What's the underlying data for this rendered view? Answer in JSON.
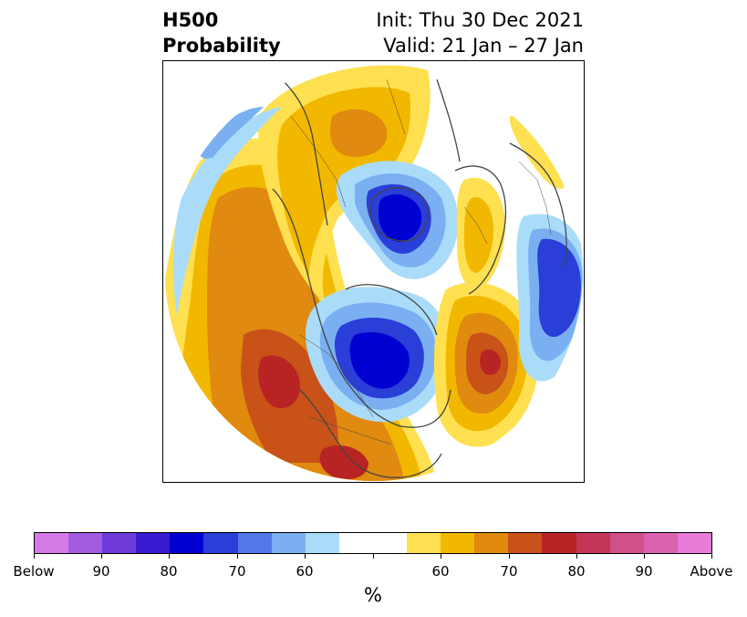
{
  "header": {
    "title_line1": "H500",
    "title_line2": "Probability",
    "init": "Init: Thu 30 Dec 2021",
    "valid": "Valid: 21 Jan – 27 Jan"
  },
  "colorbar": {
    "unit": "%",
    "labels": [
      "Below",
      "90",
      "80",
      "70",
      "60",
      "60",
      "70",
      "80",
      "90",
      "Above"
    ],
    "colors": [
      "#d67ae8",
      "#a25ae0",
      "#6e3ad8",
      "#3a1ad0",
      "#0000d0",
      "#2a3ed8",
      "#5277e8",
      "#7ab0f2",
      "#aadcfa",
      "#ffffff",
      "#ffffff",
      "#ffe050",
      "#f2b800",
      "#e08a10",
      "#c85218",
      "#b82424",
      "#c43658",
      "#d0508a",
      "#dc62b0",
      "#e87ad8"
    ]
  },
  "map_colors": {
    "below_light": "#aadcfa",
    "below_mid": "#7ab0f2",
    "below_strong": "#2a3ed8",
    "below_max": "#0000d0",
    "above_light": "#ffe050",
    "above_mid": "#f2b800",
    "above_strong": "#e08a10",
    "above_high": "#c85218",
    "above_max": "#b82424",
    "land_outline": "#444444"
  }
}
